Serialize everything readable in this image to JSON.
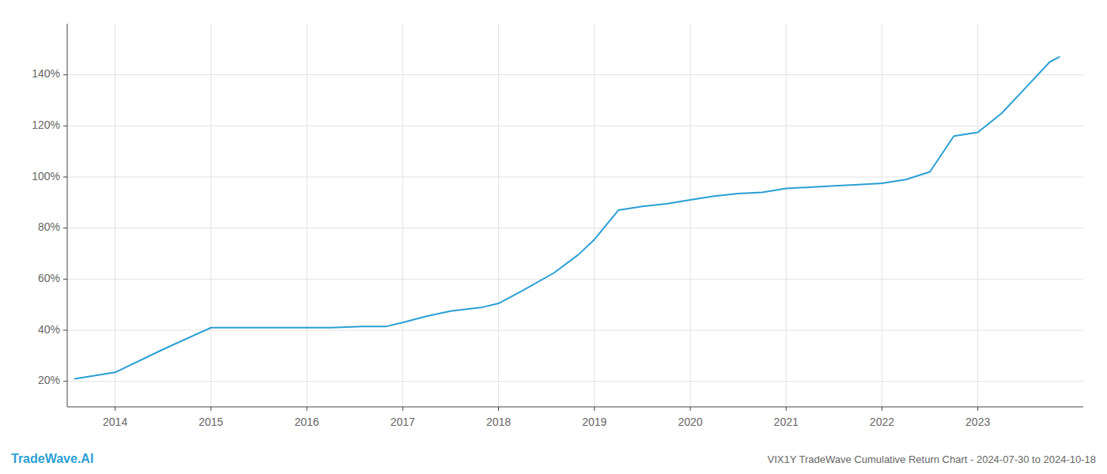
{
  "chart_data": {
    "type": "line",
    "title": "VIX1Y TradeWave Cumulative Return Chart - 2024-07-30 to 2024-10-18",
    "annotations": [
      "TradeWave.AI"
    ],
    "color": "#2b9fd4",
    "grid": true,
    "x": [
      2013.58,
      2014.0,
      2014.5,
      2015.0,
      2015.5,
      2016.0,
      2016.25,
      2016.58,
      2016.83,
      2017.0,
      2017.25,
      2017.5,
      2017.83,
      2018.0,
      2018.25,
      2018.58,
      2018.83,
      2019.0,
      2019.25,
      2019.5,
      2019.75,
      2020.0,
      2020.25,
      2020.5,
      2020.75,
      2021.0,
      2021.25,
      2021.5,
      2021.75,
      2022.0,
      2022.25,
      2022.5,
      2022.75,
      2023.0,
      2023.25,
      2023.5,
      2023.75,
      2023.85
    ],
    "values": [
      0.21,
      0.235,
      0.325,
      0.41,
      0.41,
      0.41,
      0.41,
      0.415,
      0.415,
      0.43,
      0.455,
      0.475,
      0.49,
      0.505,
      0.555,
      0.625,
      0.695,
      0.755,
      0.87,
      0.885,
      0.895,
      0.91,
      0.925,
      0.935,
      0.94,
      0.955,
      0.96,
      0.965,
      0.97,
      0.975,
      0.99,
      1.02,
      1.16,
      1.175,
      1.25,
      1.35,
      1.45,
      1.47
    ],
    "xlim": [
      2013.5,
      2024.1
    ],
    "xticks": [
      2014,
      2015,
      2016,
      2017,
      2018,
      2019,
      2020,
      2021,
      2022,
      2023
    ],
    "ylim": [
      0.1,
      1.6
    ],
    "yticks": [
      {
        "value": 0.2,
        "label": "20%"
      },
      {
        "value": 0.4,
        "label": "40%"
      },
      {
        "value": 0.6,
        "label": "60%"
      },
      {
        "value": 0.8,
        "label": "80%"
      },
      {
        "value": 1.0,
        "label": "100%"
      },
      {
        "value": 1.2,
        "label": "120%"
      },
      {
        "value": 1.4,
        "label": "140%"
      }
    ]
  }
}
